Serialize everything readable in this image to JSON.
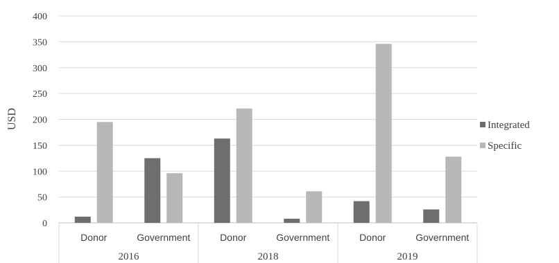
{
  "chart_data": {
    "type": "bar",
    "ylabel": "USD",
    "ylim": [
      0,
      400
    ],
    "yticks": [
      0,
      50,
      100,
      150,
      200,
      250,
      300,
      350,
      400
    ],
    "grid": true,
    "legend_position": "right",
    "groups": [
      {
        "label": "2016",
        "categories": [
          "Donor",
          "Government"
        ]
      },
      {
        "label": "2018",
        "categories": [
          "Donor",
          "Government"
        ]
      },
      {
        "label": "2019",
        "categories": [
          "Donor",
          "Government"
        ]
      }
    ],
    "series": [
      {
        "name": "Integrated",
        "color": "#6e6e6e",
        "values": [
          12,
          125,
          163,
          8,
          42,
          26
        ]
      },
      {
        "name": "Specific",
        "color": "#b8b8b8",
        "values": [
          195,
          96,
          221,
          61,
          346,
          128
        ]
      }
    ]
  }
}
